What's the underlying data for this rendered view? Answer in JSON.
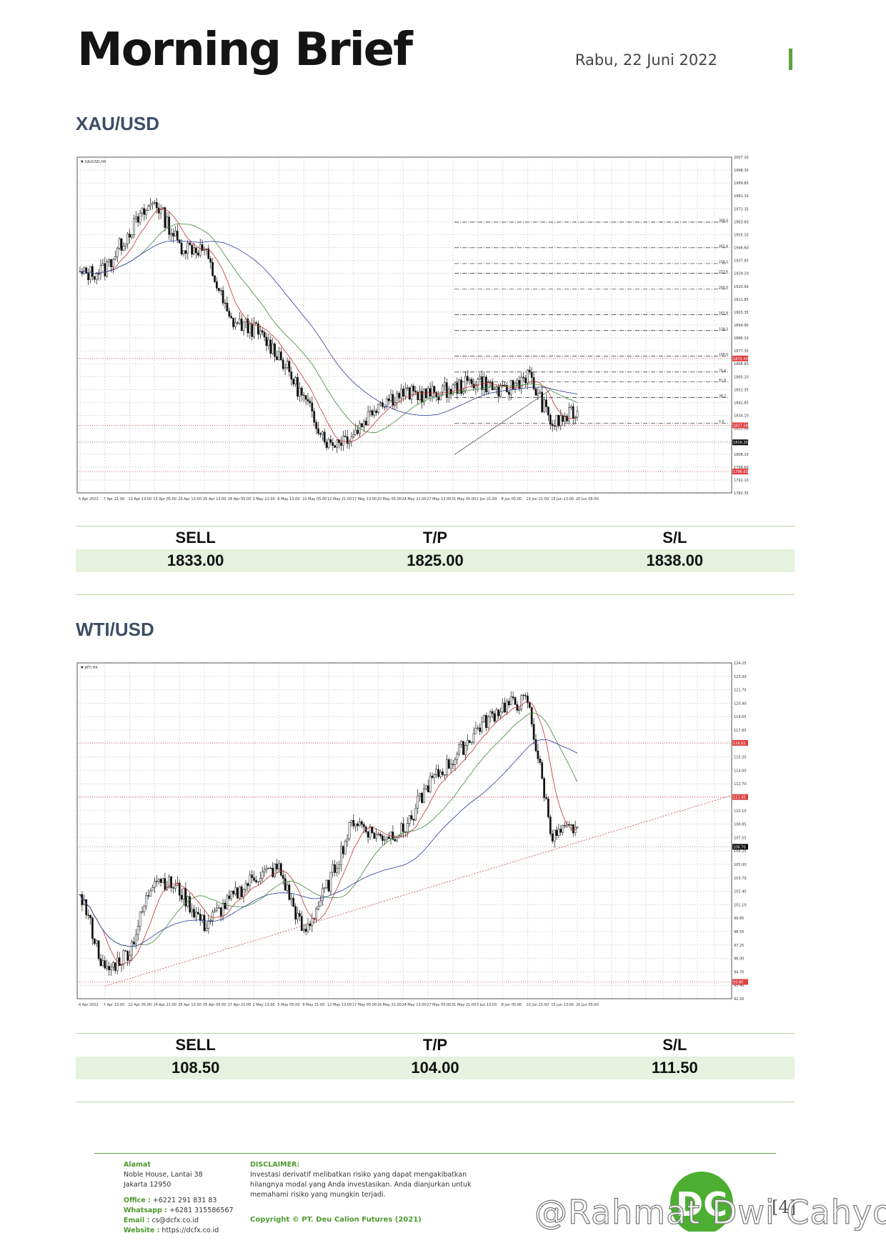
{
  "header": {
    "brand": "Morning Brief",
    "date": "Rabu, 22 Juni 2022"
  },
  "sections": [
    {
      "title": "XAU/USD",
      "signal": {
        "headers": [
          "SELL",
          "T/P",
          "S/L"
        ],
        "values": [
          "1833.00",
          "1825.00",
          "1838.00"
        ]
      }
    },
    {
      "title": "WTI/USD",
      "signal": {
        "headers": [
          "SELL",
          "T/P",
          "S/L"
        ],
        "values": [
          "108.50",
          "104.00",
          "111.50"
        ]
      }
    }
  ],
  "chart_data": [
    {
      "type": "line",
      "subtype": "candlestick",
      "legend": "XAUUSD,H4",
      "x": [
        "5 Apr 2022",
        "7 Apr 21:00",
        "12 Apr 13:00",
        "15 Apr 05:00",
        "20 Apr 13:00",
        "25 Apr 13:00",
        "28 Apr 05:00",
        "3 May 21:00",
        "6 May 13:00",
        "10 May 05:00",
        "12 May 21:00",
        "17 May 13:00",
        "20 May 05:00",
        "24 May 21:00",
        "27 May 13:00",
        "31 May 05:00",
        "2 Jun 21:00",
        "8 Jun 05:00",
        "10 Jun 21:00",
        "15 Jun 13:00",
        "20 Jun 05:00"
      ],
      "series": [
        {
          "values": [
            1928,
            1932,
            1958,
            1978,
            1948,
            1945,
            1898,
            1892,
            1875,
            1845,
            1815,
            1822,
            1843,
            1849,
            1848,
            1852,
            1858,
            1849,
            1862,
            1828,
            1837
          ]
        }
      ],
      "y_ticks": [
        "2007.10",
        "1998.35",
        "1989.85",
        "1981.10",
        "1972.35",
        "1963.60",
        "1955.10",
        "1946.60",
        "1937.85",
        "1929.10",
        "1920.60",
        "1911.85",
        "1903.35",
        "1894.60",
        "1886.10",
        "1877.30",
        "1868.60",
        "1860.10",
        "1851.35",
        "1842.85",
        "1834.10",
        "1825.60",
        "1816.85",
        "1808.10",
        "1799.60",
        "1791.10",
        "1782.35"
      ],
      "y_labels_highlight": [
        "1872.34",
        "1827.58",
        "1816.20",
        "1796.63"
      ],
      "fib_levels": [
        "300.0",
        "261.8",
        "238.2",
        "223.6",
        "200.0",
        "161.8",
        "138.2",
        "100.0",
        "76.4",
        "61.8",
        "38.2",
        "0.0"
      ],
      "ylim": [
        1782.35,
        2007.1
      ]
    },
    {
      "type": "line",
      "subtype": "candlestick",
      "legend": "WTI,H4",
      "x": [
        "4 Apr 2022",
        "7 Apr 13:00",
        "12 Apr 05:00",
        "14 Apr 21:00",
        "20 Apr 13:00",
        "25 Apr 05:00",
        "27 Apr 21:00",
        "2 May 13:00",
        "5 May 05:00",
        "9 May 21:00",
        "12 May 13:00",
        "17 May 05:00",
        "19 May 21:00",
        "24 May 13:00",
        "27 May 05:00",
        "31 May 21:00",
        "3 Jun 13:00",
        "8 Jun 05:00",
        "10 Jun 21:00",
        "15 Jun 13:00",
        "20 Jun 05:00"
      ],
      "series": [
        {
          "values": [
            102.5,
            94.6,
            96.8,
            104.0,
            102.5,
            99.2,
            101.5,
            103.8,
            104.6,
            98.3,
            103.2,
            109.3,
            107.6,
            108.2,
            112.6,
            115.0,
            118.0,
            120.1,
            120.6,
            107.6,
            108.6
          ]
        }
      ],
      "y_ticks": [
        "124.25",
        "123.00",
        "121.70",
        "120.40",
        "119.05",
        "117.85",
        "116.55",
        "115.20",
        "114.00",
        "112.70",
        "111.40",
        "110.10",
        "108.85",
        "107.55",
        "106.25",
        "105.00",
        "103.70",
        "102.40",
        "101.10",
        "99.85",
        "98.55",
        "97.25",
        "96.00",
        "94.70",
        "93.40",
        "92.20"
      ],
      "y_labels_highlight": [
        "116.62",
        "111.45",
        "106.70",
        "93.80"
      ],
      "ylim": [
        92.2,
        124.25
      ]
    }
  ],
  "footer": {
    "address_label": "Alamat",
    "address_lines": [
      "Noble House, Lantai 38",
      "Jakarta 12950"
    ],
    "office_label": "Office :",
    "office": "+6221 291 831 83",
    "whatsapp_label": "Whatsapp :",
    "whatsapp": "+6281 315586567",
    "email_label": "Email :",
    "email": "cs@dcfx.co.id",
    "website_label": "Website :",
    "website": "https://dcfx.co.id",
    "disclaimer_label": "DISCLAIMER:",
    "disclaimer": "Investasi derivatif melibatkan risiko yang dapat mengakibatkan hilangnya modal yang Anda investasikan. Anda dianjurkan untuk memahami risiko yang mungkin terjadi.",
    "copyright": "Copyright © PT. Deu Calion Futures (2021)",
    "page_number": "[4]",
    "watermark": "@Rahmat Dwi Cahyo",
    "colors": {
      "brand_green": "#5fa33a",
      "logo_green": "#4caf32",
      "title_blue": "#3d4e66"
    }
  }
}
